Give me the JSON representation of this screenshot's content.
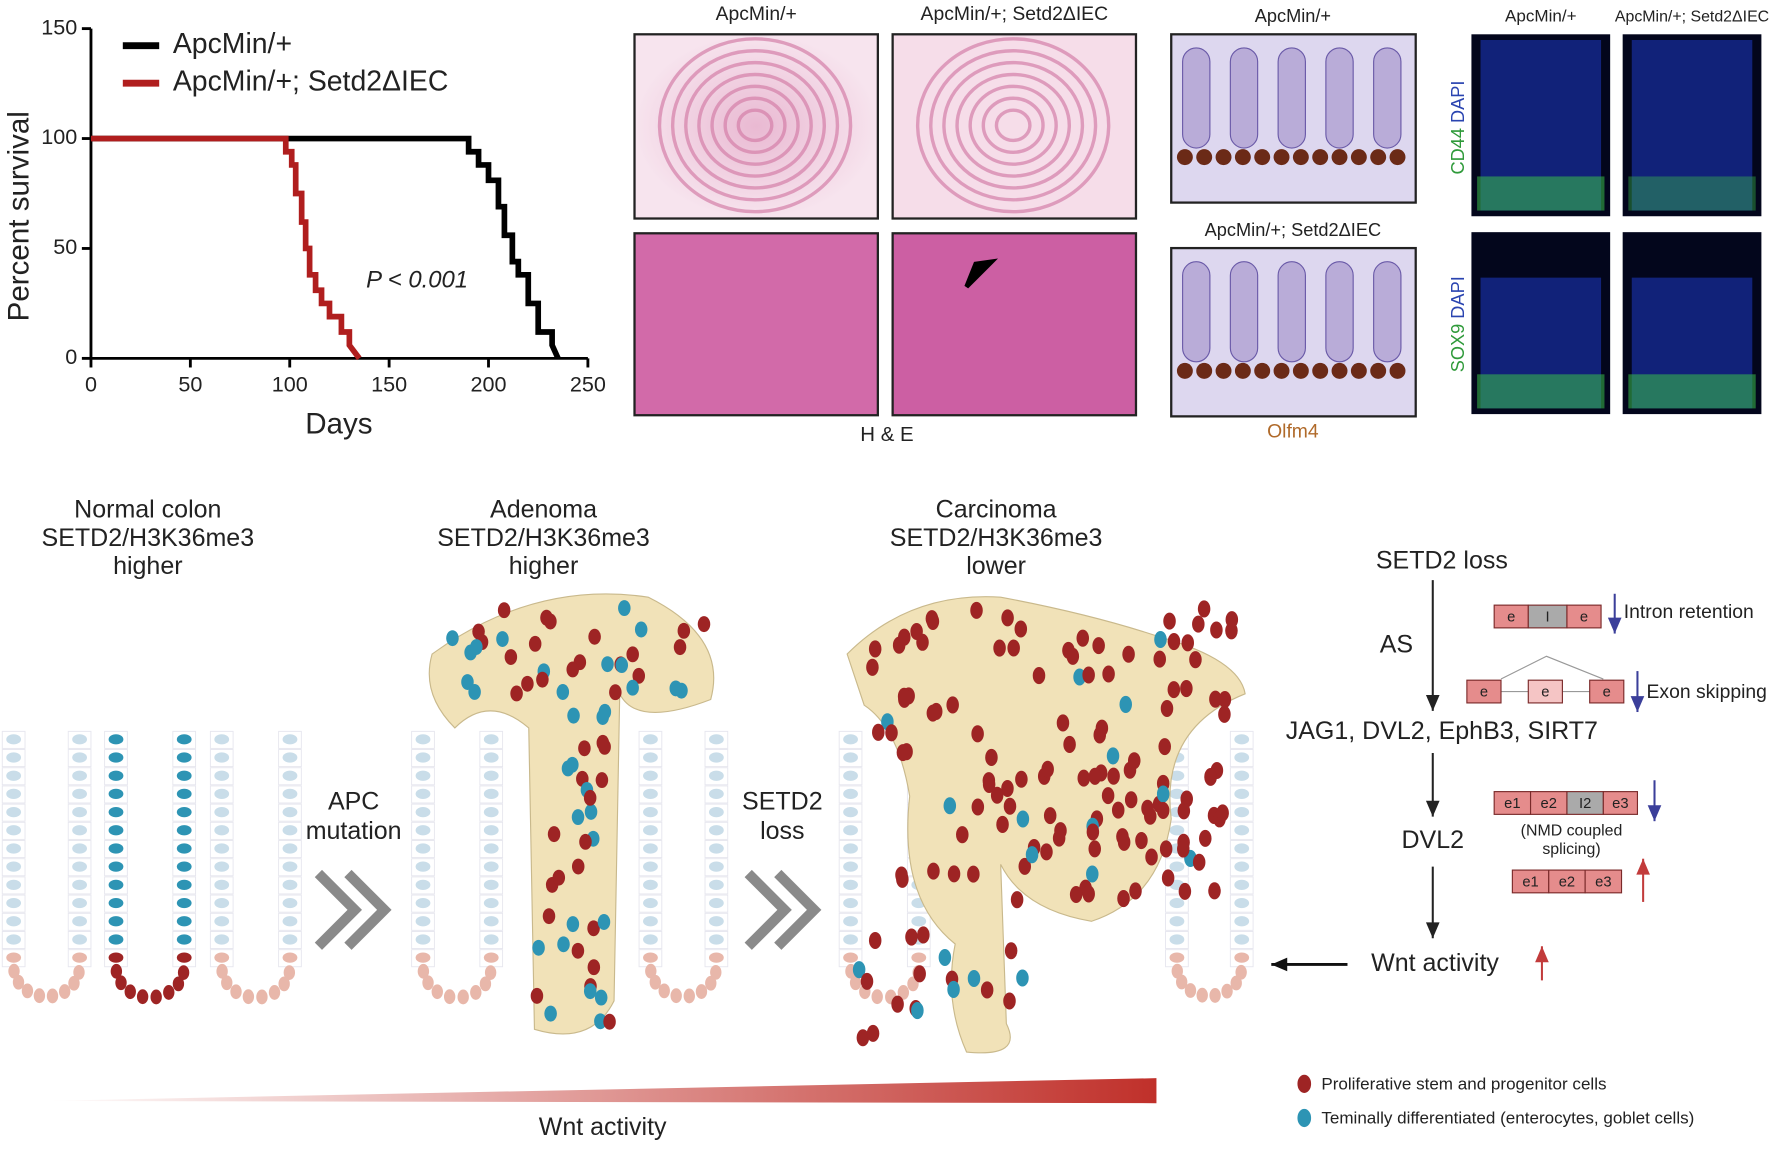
{
  "chart_data": {
    "type": "line",
    "ylabel": "Percent survival",
    "xlabel": "Days",
    "annotation": "P < 0.001",
    "xlim": [
      0,
      250
    ],
    "xticks": [
      0,
      50,
      100,
      150,
      200,
      250
    ],
    "ylim": [
      0,
      150
    ],
    "yticks": [
      0,
      50,
      100,
      150
    ],
    "series": [
      {
        "name": "ApcMin/+",
        "color": "#000000",
        "x": [
          0,
          190,
          190,
          195,
          195,
          200,
          200,
          205,
          205,
          208,
          208,
          212,
          212,
          215,
          215,
          220,
          220,
          225,
          225,
          232,
          232,
          235
        ],
        "values": [
          100,
          100,
          94,
          94,
          88,
          88,
          81,
          81,
          69,
          69,
          56,
          56,
          44,
          44,
          38,
          38,
          25,
          25,
          12,
          12,
          6,
          0
        ]
      },
      {
        "name": "ApcMin/+; Setd2ΔIEC",
        "color": "#b01e1e",
        "x": [
          0,
          98,
          98,
          101,
          101,
          103,
          103,
          106,
          106,
          108,
          108,
          110,
          110,
          113,
          113,
          116,
          116,
          120,
          120,
          126,
          126,
          130,
          130,
          135
        ],
        "values": [
          100,
          100,
          94,
          94,
          88,
          88,
          75,
          75,
          62,
          62,
          50,
          50,
          38,
          38,
          31,
          31,
          25,
          25,
          19,
          19,
          12,
          12,
          6,
          0
        ]
      }
    ]
  },
  "histology": {
    "he": {
      "col_labels": [
        "ApcMin/+",
        "ApcMin/+; Setd2ΔIEC"
      ],
      "caption": "H & E"
    },
    "olfm4": {
      "labels": [
        "ApcMin/+",
        "ApcMin/+; Setd2ΔIEC"
      ],
      "caption": "Olfm4"
    },
    "immunofluorescence": {
      "col_labels": [
        "ApcMin/+",
        "ApcMin/+; Setd2ΔIEC"
      ],
      "rows": [
        {
          "marker": "CD44",
          "counterstain": "DAPI"
        },
        {
          "marker": "SOX9",
          "counterstain": "DAPI"
        }
      ]
    }
  },
  "model": {
    "stages": [
      {
        "name": "Normal colon",
        "marker": "SETD2/H3K36me3",
        "level": "higher"
      },
      {
        "name": "Adenoma",
        "marker": "SETD2/H3K36me3",
        "level": "higher"
      },
      {
        "name": "Carcinoma",
        "marker": "SETD2/H3K36me3",
        "level": "lower"
      }
    ],
    "transitions": [
      {
        "lines": [
          "APC",
          "mutation"
        ]
      },
      {
        "lines": [
          "SETD2",
          "loss"
        ]
      }
    ],
    "gradient_label": "Wnt activity",
    "legend": [
      "Proliferative stem and progenitor cells",
      "Teminally differentiated (enterocytes, goblet cells)"
    ]
  },
  "mechanism": {
    "start": "SETD2 loss",
    "as": "AS",
    "events": [
      "Intron retention",
      "Exon skipping"
    ],
    "targets": "JAG1, DVL2, EphB3, SIRT7",
    "gene": "DVL2",
    "nmd": [
      "(NMD coupled",
      "splicing)"
    ],
    "outcome": "Wnt activity",
    "exons": {
      "ir": [
        "e",
        "I",
        "e"
      ],
      "es": [
        "e",
        "e",
        "e"
      ],
      "nmd": [
        "e1",
        "e2",
        "I2",
        "e3"
      ],
      "spliced": [
        "e1",
        "e2",
        "e3"
      ]
    }
  }
}
